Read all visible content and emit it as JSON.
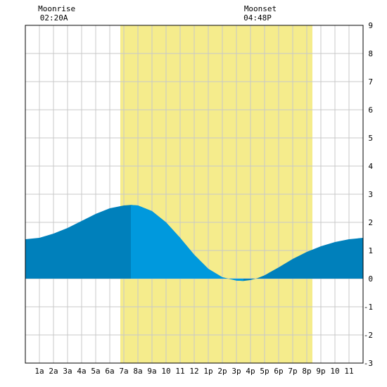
{
  "chart_data": {
    "type": "area",
    "x_unit_hours": [
      0,
      24
    ],
    "ylim": [
      -3,
      9
    ],
    "yticks": [
      -3,
      -2,
      -1,
      0,
      1,
      2,
      3,
      4,
      5,
      6,
      7,
      8,
      9
    ],
    "xtick_labels": [
      "1a",
      "2a",
      "3a",
      "4a",
      "5a",
      "6a",
      "7a",
      "8a",
      "9a",
      "10",
      "11",
      "12",
      "1p",
      "2p",
      "3p",
      "4p",
      "5p",
      "6p",
      "7p",
      "8p",
      "9p",
      "10",
      "11"
    ],
    "grid": true,
    "daylight": {
      "start_hour": 6.75,
      "end_hour": 20.4,
      "color": "#f5ec8c"
    },
    "annotations": [
      {
        "name": "moonrise",
        "label": "Moonrise",
        "time": "02:20A",
        "hour": 2.33
      },
      {
        "name": "moonset",
        "label": "Moonset",
        "time": "04:48P",
        "hour": 16.8
      }
    ],
    "series": [
      {
        "x": [
          0,
          1,
          2,
          3,
          4,
          5,
          6,
          7,
          7.5,
          8,
          9,
          10,
          11,
          12,
          13,
          14,
          15,
          15.5,
          16,
          16.5,
          17,
          18,
          19,
          20,
          21,
          22,
          23,
          24
        ],
        "values": [
          1.4,
          1.45,
          1.6,
          1.8,
          2.05,
          2.3,
          2.5,
          2.6,
          2.62,
          2.6,
          2.4,
          2.0,
          1.45,
          0.85,
          0.35,
          0.05,
          -0.07,
          -0.08,
          -0.05,
          0.02,
          0.12,
          0.4,
          0.7,
          0.95,
          1.15,
          1.3,
          1.4,
          1.45
        ]
      }
    ],
    "colors": {
      "light": "#0099dd",
      "dark": "#0080bb",
      "grid": "#c8c8c8",
      "highlight_x": [
        7.5,
        15.5
      ]
    }
  }
}
